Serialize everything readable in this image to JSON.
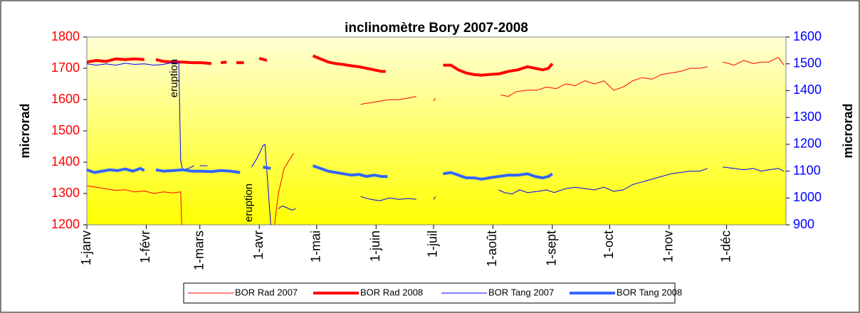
{
  "chart_data": {
    "type": "line",
    "title": "inclinomètre Bory 2007-2008",
    "ylabel": "microrad",
    "y2label": "microrad",
    "xlim": [
      0,
      365
    ],
    "xticks": [
      {
        "value": 0,
        "label": "1-janv"
      },
      {
        "value": 31,
        "label": "1-févr"
      },
      {
        "value": 59,
        "label": "1-mars"
      },
      {
        "value": 90,
        "label": "1-avr"
      },
      {
        "value": 120,
        "label": "1-mai"
      },
      {
        "value": 151,
        "label": "1-juin"
      },
      {
        "value": 181,
        "label": "1-juil"
      },
      {
        "value": 212,
        "label": "1-août"
      },
      {
        "value": 243,
        "label": "1-sept"
      },
      {
        "value": 273,
        "label": "1-oct"
      },
      {
        "value": 304,
        "label": "1-nov"
      },
      {
        "value": 334,
        "label": "1-déc"
      }
    ],
    "ylim": [
      1200,
      1800
    ],
    "yticks": [
      1200,
      1300,
      1400,
      1500,
      1600,
      1700,
      1800
    ],
    "y2lim": [
      900,
      1600
    ],
    "y2ticks": [
      900,
      1000,
      1100,
      1200,
      1300,
      1400,
      1500,
      1600
    ],
    "ytick_color": "#ff0000",
    "y2tick_color": "#0000ff",
    "legend": "bottom",
    "annotations": [
      "eruption",
      "eruption"
    ],
    "series": [
      {
        "name": "BOR Rad 2007",
        "color": "#ff0000",
        "line_width": 1,
        "x": [
          0,
          5,
          10,
          15,
          20,
          25,
          30,
          35,
          40,
          45,
          49,
          49.5,
          null,
          98,
          100,
          103,
          107,
          108,
          null,
          143,
          148,
          153,
          158,
          163,
          168,
          172,
          null,
          181,
          182,
          null,
          216,
          220,
          224,
          230,
          235,
          240,
          245,
          250,
          255,
          260,
          265,
          270,
          275,
          280,
          285,
          290,
          295,
          300,
          305,
          310,
          315,
          320,
          324,
          null,
          332,
          338,
          343,
          348,
          352,
          356,
          361,
          364
        ],
        "values": [
          1325,
          1320,
          1315,
          1310,
          1312,
          1305,
          1308,
          1300,
          1305,
          1302,
          1305,
          1200,
          null,
          1200,
          1300,
          1380,
          1420,
          1428,
          null,
          1585,
          1590,
          1595,
          1600,
          1600,
          1605,
          1610,
          null,
          1595,
          1605,
          null,
          1615,
          1610,
          1625,
          1630,
          1630,
          1640,
          1635,
          1650,
          1645,
          1660,
          1650,
          1660,
          1630,
          1640,
          1660,
          1670,
          1665,
          1680,
          1685,
          1690,
          1700,
          1700,
          1705,
          null,
          1720,
          1710,
          1725,
          1715,
          1720,
          1720,
          1735,
          1710
        ]
      },
      {
        "name": "BOR Rad 2008",
        "color": "#ff0000",
        "line_width": 4,
        "x": [
          0,
          5,
          10,
          15,
          20,
          25,
          30,
          null,
          36,
          40,
          45,
          50,
          55,
          60,
          65,
          null,
          70,
          73,
          null,
          78,
          82,
          null,
          90,
          94,
          null,
          118,
          122,
          126,
          130,
          134,
          138,
          142,
          146,
          150,
          154,
          156,
          null,
          186,
          190,
          194,
          198,
          202,
          206,
          210,
          215,
          220,
          225,
          230,
          234,
          238,
          241,
          243
        ],
        "values": [
          1720,
          1725,
          1722,
          1730,
          1728,
          1730,
          1728,
          null,
          1728,
          1722,
          1720,
          1720,
          1718,
          1718,
          1715,
          null,
          1718,
          1720,
          null,
          1718,
          1718,
          null,
          1732,
          1725,
          null,
          1740,
          1730,
          1720,
          1715,
          1712,
          1708,
          1705,
          1700,
          1695,
          1690,
          1690,
          null,
          1710,
          1710,
          1695,
          1685,
          1680,
          1678,
          1680,
          1682,
          1690,
          1695,
          1705,
          1700,
          1695,
          1700,
          1715
        ]
      },
      {
        "name": "BOR Tang 2007",
        "color": "#0000ff",
        "line_width": 1,
        "axis": "y2",
        "x": [
          0,
          5,
          10,
          15,
          20,
          25,
          30,
          35,
          40,
          45,
          48,
          49,
          50,
          53,
          56,
          null,
          59,
          63,
          null,
          86,
          89,
          92,
          93,
          94,
          96,
          null,
          100,
          102,
          104,
          107,
          109,
          null,
          143,
          148,
          153,
          158,
          163,
          168,
          172,
          null,
          181,
          182,
          null,
          215,
          218,
          222,
          226,
          230,
          236,
          240,
          244,
          250,
          255,
          260,
          265,
          270,
          275,
          280,
          285,
          290,
          295,
          300,
          305,
          310,
          315,
          320,
          324,
          null,
          332,
          338,
          343,
          348,
          352,
          356,
          361,
          364
        ],
        "values": [
          1500,
          1495,
          1500,
          1495,
          1502,
          1498,
          1500,
          1495,
          1498,
          1505,
          1505,
          1140,
          1105,
          1110,
          1120,
          null,
          1120,
          1120,
          null,
          1115,
          1150,
          1195,
          1200,
          1100,
          900,
          null,
          960,
          970,
          965,
          955,
          960,
          null,
          1005,
          995,
          990,
          1000,
          995,
          998,
          995,
          null,
          995,
          1005,
          null,
          1030,
          1020,
          1015,
          1030,
          1020,
          1025,
          1030,
          1020,
          1035,
          1040,
          1035,
          1030,
          1040,
          1025,
          1030,
          1050,
          1060,
          1070,
          1080,
          1090,
          1095,
          1100,
          1100,
          1110,
          null,
          1115,
          1110,
          1105,
          1110,
          1100,
          1105,
          1110,
          1100
        ]
      },
      {
        "name": "BOR Tang 2008",
        "color": "#3366ff",
        "line_width": 4,
        "axis": "y2",
        "x": [
          0,
          4,
          8,
          12,
          16,
          20,
          24,
          28,
          30,
          null,
          36,
          40,
          45,
          50,
          55,
          60,
          65,
          70,
          75,
          80,
          null,
          92,
          96,
          null,
          118,
          122,
          126,
          130,
          134,
          138,
          142,
          146,
          150,
          154,
          157,
          null,
          186,
          190,
          194,
          198,
          202,
          206,
          210,
          215,
          220,
          225,
          230,
          234,
          238,
          241,
          243
        ],
        "values": [
          1105,
          1095,
          1100,
          1105,
          1102,
          1108,
          1100,
          1110,
          1102,
          null,
          1105,
          1100,
          1102,
          1105,
          1100,
          1100,
          1098,
          1102,
          1100,
          1095,
          null,
          1115,
          1110,
          null,
          1120,
          1110,
          1100,
          1095,
          1090,
          1085,
          1088,
          1080,
          1085,
          1080,
          1080,
          null,
          1090,
          1095,
          1085,
          1075,
          1075,
          1070,
          1075,
          1080,
          1085,
          1085,
          1090,
          1080,
          1075,
          1080,
          1090
        ]
      }
    ]
  }
}
